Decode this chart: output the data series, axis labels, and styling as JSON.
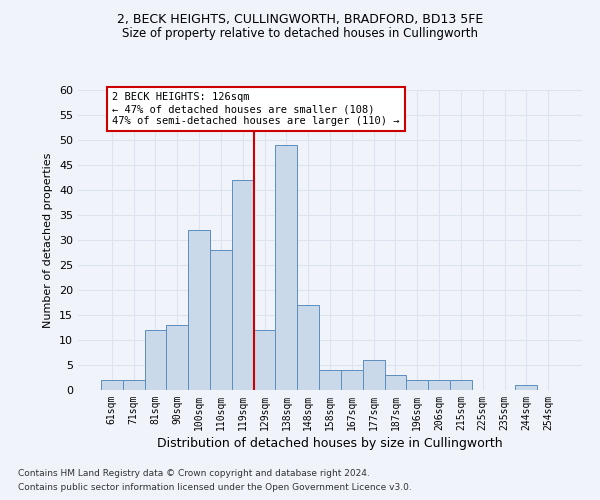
{
  "title1": "2, BECK HEIGHTS, CULLINGWORTH, BRADFORD, BD13 5FE",
  "title2": "Size of property relative to detached houses in Cullingworth",
  "xlabel": "Distribution of detached houses by size in Cullingworth",
  "ylabel": "Number of detached properties",
  "categories": [
    "61sqm",
    "71sqm",
    "81sqm",
    "90sqm",
    "100sqm",
    "110sqm",
    "119sqm",
    "129sqm",
    "138sqm",
    "148sqm",
    "158sqm",
    "167sqm",
    "177sqm",
    "187sqm",
    "196sqm",
    "206sqm",
    "215sqm",
    "225sqm",
    "235sqm",
    "244sqm",
    "254sqm"
  ],
  "values": [
    2,
    2,
    12,
    13,
    32,
    28,
    42,
    12,
    49,
    17,
    4,
    4,
    6,
    3,
    2,
    2,
    2,
    0,
    0,
    1,
    0
  ],
  "bar_color": "#c9d9ea",
  "bar_edge_color": "#5a8fc0",
  "vline_x": 6.5,
  "vline_color": "#cc0000",
  "annotation_text": "2 BECK HEIGHTS: 126sqm\n← 47% of detached houses are smaller (108)\n47% of semi-detached houses are larger (110) →",
  "annotation_box_edge": "#cc0000",
  "ylim": [
    0,
    60
  ],
  "yticks": [
    0,
    5,
    10,
    15,
    20,
    25,
    30,
    35,
    40,
    45,
    50,
    55,
    60
  ],
  "grid_color": "#dde3ee",
  "background_color": "#f0f3fa",
  "footer1": "Contains HM Land Registry data © Crown copyright and database right 2024.",
  "footer2": "Contains public sector information licensed under the Open Government Licence v3.0."
}
